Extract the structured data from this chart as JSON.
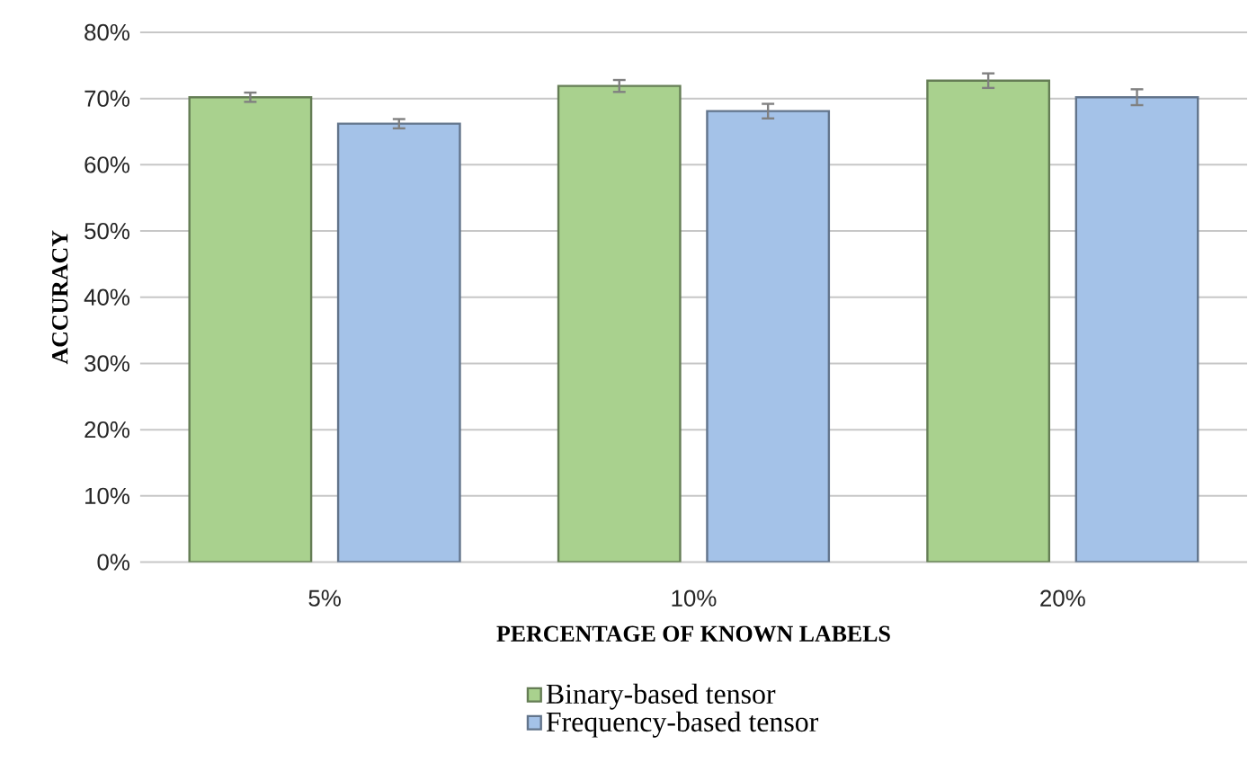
{
  "chart_data": {
    "type": "bar",
    "xlabel": "PERCENTAGE OF KNOWN LABELS",
    "ylabel": "ACCURACY",
    "categories": [
      "5%",
      "10%",
      "20%"
    ],
    "series": [
      {
        "name": "Binary-based tensor",
        "color": "#a9d18e",
        "values": [
          70.2,
          71.9,
          72.7
        ],
        "errors": [
          0.7,
          0.9,
          1.1
        ]
      },
      {
        "name": "Frequency-based tensor",
        "color": "#a4c2e8",
        "values": [
          66.2,
          68.1,
          70.2
        ],
        "errors": [
          0.7,
          1.1,
          1.2
        ]
      }
    ],
    "ylim": [
      0,
      80
    ],
    "yticks": [
      {
        "value": 0,
        "label": "0%"
      },
      {
        "value": 10,
        "label": "10%"
      },
      {
        "value": 20,
        "label": "20%"
      },
      {
        "value": 30,
        "label": "30%"
      },
      {
        "value": 40,
        "label": "40%"
      },
      {
        "value": 50,
        "label": "50%"
      },
      {
        "value": 60,
        "label": "60%"
      },
      {
        "value": 70,
        "label": "70%"
      },
      {
        "value": 80,
        "label": "80%"
      }
    ],
    "grid": "y",
    "legend": "bottom"
  }
}
